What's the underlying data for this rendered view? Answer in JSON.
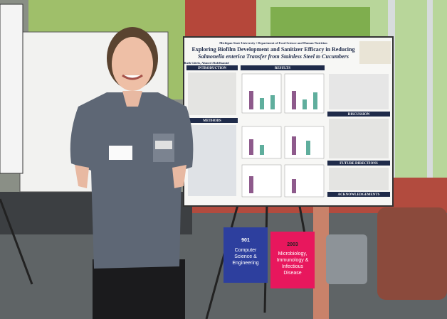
{
  "poster": {
    "affiliation": "Michigan State University • Department of Food Science and Human Nutrition",
    "title": [
      "Exploring Biofilm Development and Sanitizer Efficacy in Reducing",
      "Salmonella enterica Transfer from Stainless Steel to Cucumbers"
    ],
    "authors": "Ruth Gitelo, Ahmed Abdelhamid",
    "sections": [
      "INTRODUCTION",
      "RESULTS",
      "METHODS",
      "DISCUSSION",
      "FUTURE DIRECTIONS",
      "ACKNOWLEDGEMENTS"
    ]
  },
  "signs": [
    {
      "number": "901",
      "label": [
        "Computer",
        "Science &",
        "Engineering"
      ]
    },
    {
      "number": "2003",
      "label": [
        "Microbiology,",
        "Immunology &",
        "Infectious",
        "Disease"
      ]
    }
  ]
}
